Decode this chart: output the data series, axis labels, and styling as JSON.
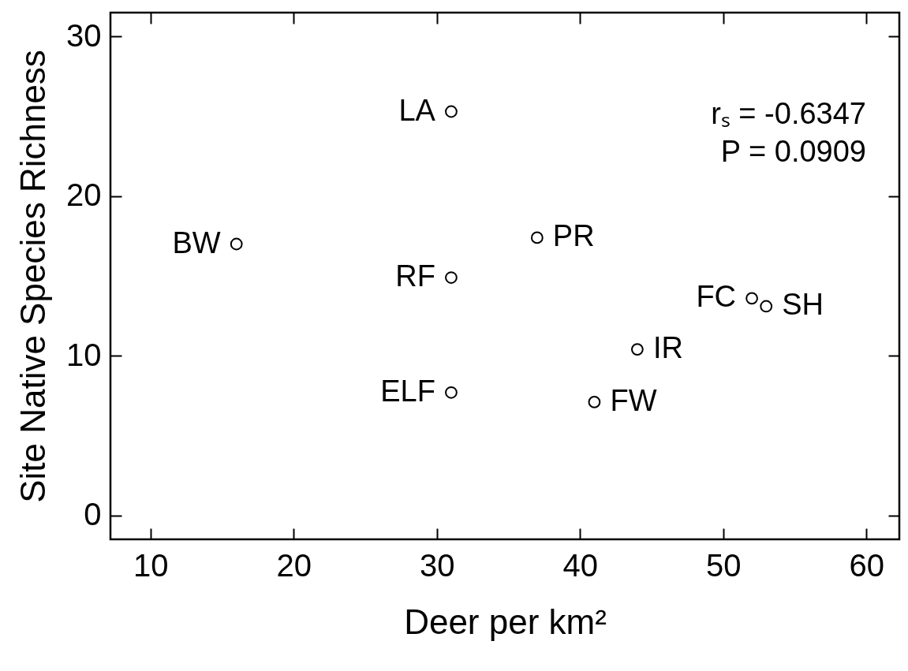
{
  "chart_data": {
    "type": "scatter",
    "xlabel": "Deer per km²",
    "ylabel": "Site Native Species Richness",
    "x": [
      16,
      31,
      31,
      31,
      37,
      52,
      53,
      44,
      41
    ],
    "values": [
      17.0,
      25.3,
      14.9,
      7.7,
      17.4,
      13.6,
      13.1,
      10.4,
      7.1
    ],
    "color": "#000000",
    "marker": "circle",
    "grid": false,
    "xlim": [
      7.2,
      62.3
    ],
    "xticks": [
      10,
      20,
      30,
      40,
      50,
      60
    ],
    "ylim": [
      -1.5,
      31.5
    ],
    "yticks": [
      0,
      10,
      20,
      30
    ],
    "annotations": [
      {
        "text": "BW",
        "x": 16,
        "y": 17.0
      },
      {
        "text": "LA",
        "x": 31,
        "y": 25.3
      },
      {
        "text": "RF",
        "x": 31,
        "y": 14.9
      },
      {
        "text": "ELF",
        "x": 31,
        "y": 7.7
      },
      {
        "text": "PR",
        "x": 37,
        "y": 17.4
      },
      {
        "text": "FC",
        "x": 52,
        "y": 13.6
      },
      {
        "text": "SH",
        "x": 53,
        "y": 13.1
      },
      {
        "text": "IR",
        "x": 44,
        "y": 10.4
      },
      {
        "text": "FW",
        "x": 41,
        "y": 7.1
      },
      "rₛ = -0.6347",
      "P = 0.0909"
    ]
  }
}
